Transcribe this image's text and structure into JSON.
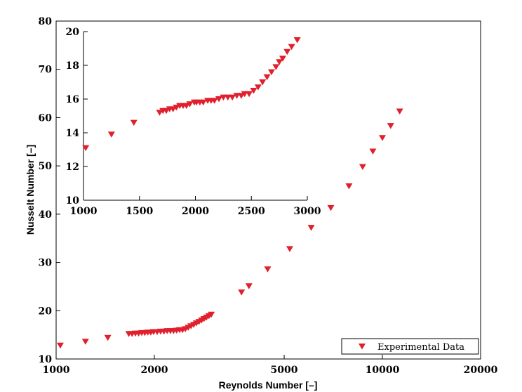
{
  "chart_data": [
    {
      "type": "scatter",
      "scale": {
        "x": "log",
        "y": "linear"
      },
      "xlabel": "Reynolds Number [–]",
      "ylabel": "Nusselt Number [–]",
      "xlim": [
        1000,
        20000
      ],
      "ylim": [
        10,
        80
      ],
      "xticks": [
        1000,
        2000,
        5000,
        10000,
        20000
      ],
      "yticks": [
        10,
        20,
        30,
        40,
        50,
        60,
        70,
        80
      ],
      "grid": false,
      "legend": {
        "placement": "bottom-right",
        "entries": [
          "Experimental Data"
        ]
      },
      "series": [
        {
          "name": "Experimental Data",
          "color": "#e0202c",
          "marker": "triangle-down",
          "points": [
            [
              1030,
              12.8
            ],
            [
              1230,
              13.6
            ],
            [
              1440,
              14.4
            ],
            [
              1670,
              15.2
            ],
            [
              1710,
              15.2
            ],
            [
              1750,
              15.3
            ],
            [
              1790,
              15.3
            ],
            [
              1830,
              15.4
            ],
            [
              1870,
              15.4
            ],
            [
              1910,
              15.5
            ],
            [
              1950,
              15.5
            ],
            [
              1990,
              15.6
            ],
            [
              2040,
              15.6
            ],
            [
              2090,
              15.7
            ],
            [
              2140,
              15.7
            ],
            [
              2190,
              15.8
            ],
            [
              2240,
              15.8
            ],
            [
              2290,
              15.8
            ],
            [
              2340,
              15.9
            ],
            [
              2390,
              16.0
            ],
            [
              2440,
              16.0
            ],
            [
              2490,
              16.2
            ],
            [
              2540,
              16.5
            ],
            [
              2590,
              16.8
            ],
            [
              2640,
              17.1
            ],
            [
              2690,
              17.4
            ],
            [
              2740,
              17.7
            ],
            [
              2790,
              18.0
            ],
            [
              2840,
              18.3
            ],
            [
              2890,
              18.6
            ],
            [
              2940,
              18.9
            ],
            [
              2990,
              19.2
            ],
            [
              3700,
              23.8
            ],
            [
              3900,
              25.1
            ],
            [
              4450,
              28.6
            ],
            [
              5200,
              32.8
            ],
            [
              6050,
              37.2
            ],
            [
              6950,
              41.3
            ],
            [
              7900,
              45.8
            ],
            [
              8700,
              49.8
            ],
            [
              9350,
              53.0
            ],
            [
              10000,
              55.8
            ],
            [
              10600,
              58.3
            ],
            [
              11300,
              61.3
            ]
          ]
        }
      ]
    },
    {
      "type": "scatter",
      "scale": {
        "x": "linear",
        "y": "linear"
      },
      "xlim": [
        1000,
        3000
      ],
      "ylim": [
        10,
        20
      ],
      "xticks": [
        1000,
        1500,
        2000,
        2500,
        3000
      ],
      "yticks": [
        10,
        12,
        14,
        16,
        18,
        20
      ],
      "grid": false,
      "series": [
        {
          "color": "#e0202c",
          "marker": "triangle-down",
          "points": [
            [
              1020,
              13.1
            ],
            [
              1250,
              13.9
            ],
            [
              1450,
              14.6
            ],
            [
              1680,
              15.2
            ],
            [
              1710,
              15.3
            ],
            [
              1740,
              15.3
            ],
            [
              1770,
              15.4
            ],
            [
              1800,
              15.4
            ],
            [
              1830,
              15.5
            ],
            [
              1860,
              15.6
            ],
            [
              1890,
              15.6
            ],
            [
              1920,
              15.6
            ],
            [
              1950,
              15.7
            ],
            [
              1990,
              15.8
            ],
            [
              2010,
              15.8
            ],
            [
              2040,
              15.8
            ],
            [
              2070,
              15.8
            ],
            [
              2110,
              15.9
            ],
            [
              2140,
              15.9
            ],
            [
              2170,
              15.9
            ],
            [
              2210,
              16.0
            ],
            [
              2250,
              16.1
            ],
            [
              2290,
              16.1
            ],
            [
              2330,
              16.1
            ],
            [
              2370,
              16.2
            ],
            [
              2410,
              16.2
            ],
            [
              2440,
              16.3
            ],
            [
              2480,
              16.3
            ],
            [
              2520,
              16.5
            ],
            [
              2560,
              16.7
            ],
            [
              2600,
              17.0
            ],
            [
              2640,
              17.3
            ],
            [
              2680,
              17.6
            ],
            [
              2720,
              17.9
            ],
            [
              2750,
              18.2
            ],
            [
              2780,
              18.4
            ],
            [
              2820,
              18.8
            ],
            [
              2860,
              19.1
            ],
            [
              2910,
              19.5
            ]
          ]
        }
      ]
    }
  ]
}
